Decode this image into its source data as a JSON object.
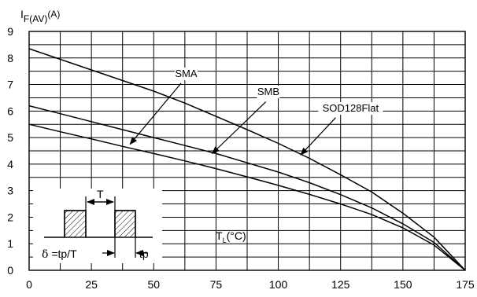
{
  "chart_data": {
    "type": "line",
    "title": "",
    "ylabel_main": "I",
    "ylabel_sub": "F(AV)",
    "ylabel_unit": "(A)",
    "xlabel_main": "T",
    "xlabel_sub": "L",
    "xlabel_unit": "(°C)",
    "xlim": [
      0,
      175
    ],
    "ylim": [
      0,
      9
    ],
    "x_ticks": [
      0,
      25,
      50,
      75,
      100,
      125,
      150,
      175
    ],
    "y_ticks": [
      0,
      1,
      2,
      3,
      4,
      5,
      6,
      7,
      8,
      9
    ],
    "x_minor_step": 12.5,
    "y_minor_step": 0.5,
    "grid": true,
    "series": [
      {
        "name": "SOD128Flat",
        "x": [
          0,
          12.5,
          25,
          37.5,
          50,
          62.5,
          75,
          87.5,
          100,
          112.5,
          125,
          137.5,
          150,
          162.5,
          175
        ],
        "y": [
          8.35,
          7.95,
          7.55,
          7.15,
          6.75,
          6.3,
          5.8,
          5.3,
          4.78,
          4.22,
          3.6,
          2.95,
          2.15,
          1.25,
          0
        ]
      },
      {
        "name": "SMB",
        "x": [
          0,
          12.5,
          25,
          37.5,
          50,
          62.5,
          75,
          87.5,
          100,
          112.5,
          125,
          137.5,
          150,
          162.5,
          175
        ],
        "y": [
          6.2,
          5.9,
          5.6,
          5.3,
          5.0,
          4.7,
          4.4,
          4.05,
          3.7,
          3.3,
          2.85,
          2.35,
          1.75,
          1.05,
          0
        ]
      },
      {
        "name": "SMA",
        "x": [
          0,
          12.5,
          25,
          37.5,
          50,
          62.5,
          75,
          87.5,
          100,
          112.5,
          125,
          137.5,
          150,
          162.5,
          175
        ],
        "y": [
          5.5,
          5.22,
          4.95,
          4.67,
          4.4,
          4.12,
          3.83,
          3.52,
          3.2,
          2.86,
          2.5,
          2.1,
          1.6,
          0.95,
          0
        ]
      }
    ],
    "annotations": [
      {
        "text": "SMA",
        "label_x": 63,
        "label_y": 7.28,
        "arrow_from": [
          61,
          7.05
        ],
        "arrow_to": [
          40.5,
          4.75
        ]
      },
      {
        "text": "SMB",
        "label_x": 96,
        "label_y": 6.6,
        "arrow_from": [
          95,
          6.35
        ],
        "arrow_to": [
          73.5,
          4.4
        ]
      },
      {
        "text": "SOD128Flat",
        "label_x": 129,
        "label_y": 5.98,
        "arrow_from": [
          123,
          5.75
        ],
        "arrow_to": [
          109,
          4.35
        ]
      }
    ],
    "inset": {
      "period_label": "T",
      "duty_prefix": "δ",
      "duty_formula": " =tp/T",
      "pulse_label": "tp"
    }
  }
}
